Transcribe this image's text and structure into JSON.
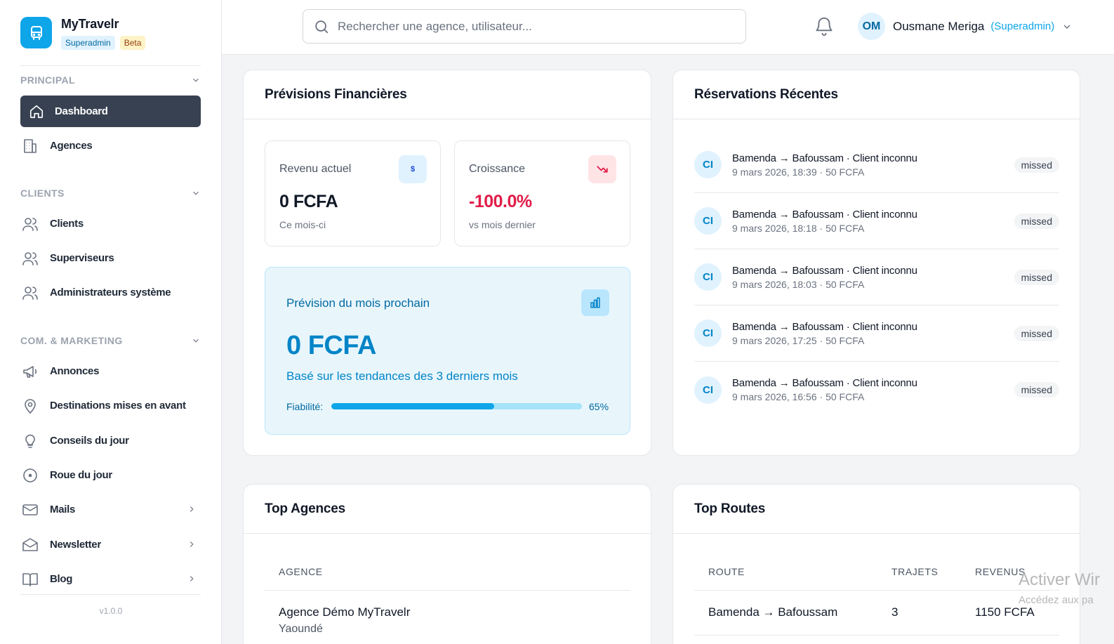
{
  "brand": {
    "name": "MyTravelr",
    "badge_role": "Superadmin",
    "badge_beta": "Beta",
    "version": "v1.0.0"
  },
  "sidebar": {
    "sections": [
      {
        "title": "PRINCIPAL",
        "items": [
          {
            "label": "Dashboard",
            "icon": "home-icon",
            "active": true
          },
          {
            "label": "Agences",
            "icon": "building-icon"
          }
        ]
      },
      {
        "title": "CLIENTS",
        "items": [
          {
            "label": "Clients",
            "icon": "users-icon"
          },
          {
            "label": "Superviseurs",
            "icon": "users-icon"
          },
          {
            "label": "Administrateurs système",
            "icon": "users-icon"
          }
        ]
      },
      {
        "title": "COM. & MARKETING",
        "items": [
          {
            "label": "Annonces",
            "icon": "megaphone-icon"
          },
          {
            "label": "Destinations mises en avant",
            "icon": "map-pin-icon"
          },
          {
            "label": "Conseils du jour",
            "icon": "lightbulb-icon"
          },
          {
            "label": "Roue du jour",
            "icon": "wheel-icon"
          },
          {
            "label": "Mails",
            "icon": "mail-icon"
          },
          {
            "label": "Newsletter",
            "icon": "mail-open-icon"
          },
          {
            "label": "Blog",
            "icon": "book-icon"
          }
        ]
      }
    ]
  },
  "topbar": {
    "search_placeholder": "Rechercher une agence, utilisateur...",
    "user": {
      "initials": "OM",
      "name": "Ousmane Meriga",
      "role": "(Superadmin)"
    }
  },
  "finance": {
    "title": "Prévisions Financières",
    "revenue": {
      "label": "Revenu actuel",
      "value": "0 FCFA",
      "sub": "Ce mois-ci",
      "icon_text": "$"
    },
    "growth": {
      "label": "Croissance",
      "value": "-100.0%",
      "sub": "vs mois dernier"
    },
    "forecast": {
      "title": "Prévision du mois prochain",
      "value": "0 FCFA",
      "desc": "Basé sur les tendances des 3 derniers mois",
      "reliability_label": "Fiabilité:",
      "reliability_pct": "65%",
      "reliability": 0.65
    }
  },
  "reservations": {
    "title": "Réservations Récentes",
    "items": [
      {
        "initials": "CI",
        "line1": "Bamenda → Bafoussam · Client inconnu",
        "line2": "9 mars 2026, 18:39 · 50 FCFA",
        "status": "missed"
      },
      {
        "initials": "CI",
        "line1": "Bamenda → Bafoussam · Client inconnu",
        "line2": "9 mars 2026, 18:18 · 50 FCFA",
        "status": "missed"
      },
      {
        "initials": "CI",
        "line1": "Bamenda → Bafoussam · Client inconnu",
        "line2": "9 mars 2026, 18:03 · 50 FCFA",
        "status": "missed"
      },
      {
        "initials": "CI",
        "line1": "Bamenda → Bafoussam · Client inconnu",
        "line2": "9 mars 2026, 17:25 · 50 FCFA",
        "status": "missed"
      },
      {
        "initials": "CI",
        "line1": "Bamenda → Bafoussam · Client inconnu",
        "line2": "9 mars 2026, 16:56 · 50 FCFA",
        "status": "missed"
      }
    ]
  },
  "top_agencies": {
    "title": "Top Agences",
    "col_agency": "AGENCE",
    "rows": [
      {
        "name": "Agence Démo MyTravelr",
        "city": "Yaoundé"
      }
    ]
  },
  "top_routes": {
    "title": "Top Routes",
    "col_route": "ROUTE",
    "col_trips": "TRAJETS",
    "col_revenue": "REVENUS",
    "rows": [
      {
        "route": "Bamenda → Bafoussam",
        "trips": "3",
        "revenue": "1150 FCFA"
      }
    ]
  },
  "watermark": {
    "line1": "Activer Wir",
    "line2": "Accédez aux pa"
  },
  "colors": {
    "accent": "#0ea5e9",
    "active_nav": "#374151",
    "negative": "#e11d48"
  }
}
